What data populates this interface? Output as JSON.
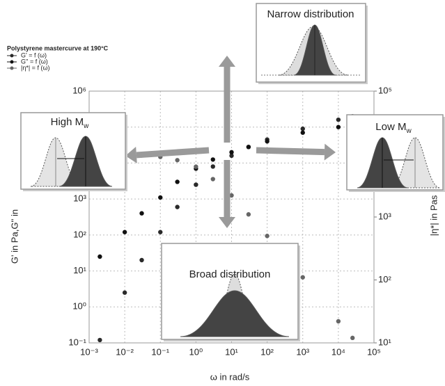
{
  "chart_data": {
    "type": "scatter",
    "xlabel": "ω in rad/s",
    "ylabel": "G' in Pa,G'' in",
    "y2label": "|η*| in Pas",
    "xscale": "log",
    "yscale": "log",
    "y2scale": "log",
    "grid": true,
    "xlim": [
      0.001,
      100000
    ],
    "ylim": [
      0.1,
      1000000
    ],
    "y2lim": [
      10,
      100000
    ],
    "xticks": [
      {
        "value": 0.001,
        "label": "10⁻³"
      },
      {
        "value": 0.01,
        "label": "10⁻²"
      },
      {
        "value": 0.1,
        "label": "10⁻¹"
      },
      {
        "value": 1,
        "label": "10⁰"
      },
      {
        "value": 10,
        "label": "10¹"
      },
      {
        "value": 100,
        "label": "10²"
      },
      {
        "value": 1000,
        "label": "10³"
      },
      {
        "value": 10000,
        "label": "10⁴"
      },
      {
        "value": 100000,
        "label": "10⁵"
      }
    ],
    "yticks": [
      {
        "value": 0.1,
        "label": "10⁻¹"
      },
      {
        "value": 1,
        "label": "10⁰"
      },
      {
        "value": 10,
        "label": "10¹"
      },
      {
        "value": 100,
        "label": "10²"
      },
      {
        "value": 1000,
        "label": "10³"
      },
      {
        "value": 10000,
        "label": "10⁴"
      },
      {
        "value": 100000,
        "label": "10⁵"
      },
      {
        "value": 1000000,
        "label": "10⁶"
      }
    ],
    "y2ticks": [
      {
        "value": 10,
        "label": "10¹"
      },
      {
        "value": 100,
        "label": "10²"
      },
      {
        "value": 1000,
        "label": "10³"
      },
      {
        "value": 10000,
        "label": "10⁴"
      },
      {
        "value": 100000,
        "label": "10⁵"
      }
    ],
    "legend": {
      "title": "Polystyrene mastercurve at 190°C",
      "position": "upper left"
    },
    "x": [
      0.002,
      0.01,
      0.03,
      0.1,
      0.3,
      1,
      3,
      10,
      30,
      100,
      1000,
      10000,
      25000
    ],
    "series": [
      {
        "name": "G' = f (ω)",
        "color": "#2a2a2a",
        "values": [
          0.12,
          2.5,
          20,
          120,
          600,
          2500,
          8000,
          16000,
          28000,
          45000,
          90000,
          160000,
          200000
        ]
      },
      {
        "name": "G'' = f (ω)",
        "color": "#111111",
        "values": [
          25,
          120,
          400,
          1100,
          3000,
          7000,
          12500,
          20000,
          28000,
          40000,
          70000,
          100000,
          125000
        ]
      },
      {
        "name": "|η*| = f (ω)",
        "color": "#666666",
        "axis": "y2",
        "values": [
          10000,
          10000,
          9500,
          9000,
          8000,
          6300,
          4000,
          2200,
          1100,
          500,
          110,
          22,
          12
        ]
      }
    ],
    "annotations": [
      {
        "text": "Narrow distribution"
      },
      {
        "text": "Broad distribution"
      },
      {
        "text": "High M",
        "subscript": "w"
      },
      {
        "text": "Low M",
        "subscript": "w"
      }
    ]
  }
}
